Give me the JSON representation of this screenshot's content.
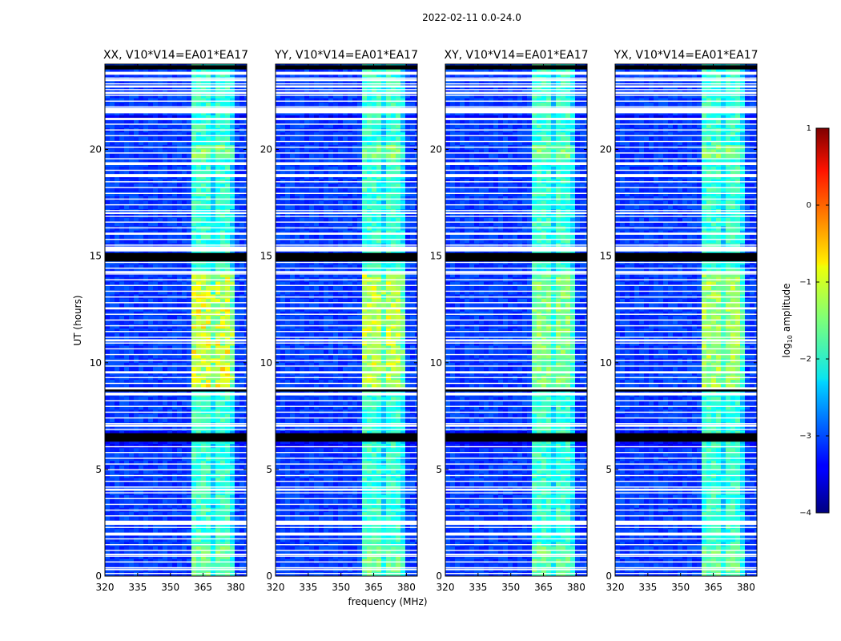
{
  "figure_title": "2022-02-11 0.0-24.0",
  "chart_data": {
    "type": "heatmap",
    "title": "2022-02-11 0.0-24.0",
    "xlabel": "frequency (MHz)",
    "ylabel": "UT (hours)",
    "xlim": [
      320,
      385
    ],
    "ylim": [
      0,
      24
    ],
    "xticks": [
      320,
      335,
      350,
      365,
      380
    ],
    "yticks": [
      0,
      5,
      10,
      15,
      20
    ],
    "panels": [
      {
        "title": "XX, V10*V14=EA01*EA17",
        "bright_band_mhz": [
          360.5,
          380
        ],
        "mid_boost": 0.15
      },
      {
        "title": "YY, V10*V14=EA01*EA17",
        "bright_band_mhz": [
          360.5,
          380
        ],
        "mid_boost": 0.1
      },
      {
        "title": "XY, V10*V14=EA01*EA17",
        "bright_band_mhz": [
          360.5,
          380
        ],
        "mid_boost": 0.0
      },
      {
        "title": "YX, V10*V14=EA01*EA17",
        "bright_band_mhz": [
          360.5,
          380
        ],
        "mid_boost": 0.05
      }
    ],
    "colorbar": {
      "label": "log10 amplitude",
      "label_main": "log",
      "label_sub": "10",
      "label_rest": " amplitude",
      "min": -4,
      "max": 1,
      "ticks": [
        "−4",
        "−3",
        "−2",
        "−1",
        "0",
        "1"
      ],
      "tick_values": [
        -4,
        -3,
        -2,
        -1,
        0,
        1
      ],
      "colormap": "jet"
    },
    "blank_rows_ut": [
      [
        23.5,
        23.6
      ],
      [
        23.2,
        23.3
      ],
      [
        22.9,
        23.0
      ],
      [
        22.6,
        22.7
      ],
      [
        21.7,
        21.95
      ],
      [
        21.4,
        21.45
      ],
      [
        19.3,
        19.4
      ],
      [
        18.7,
        18.85
      ],
      [
        17.0,
        17.05
      ],
      [
        16.0,
        16.1
      ],
      [
        15.25,
        15.45
      ],
      [
        14.2,
        14.3
      ],
      [
        12.5,
        12.6
      ],
      [
        11.0,
        11.1
      ],
      [
        9.5,
        9.6
      ],
      [
        8.8,
        8.85
      ],
      [
        8.5,
        8.6
      ],
      [
        7.0,
        7.1
      ],
      [
        4.0,
        4.1
      ],
      [
        2.4,
        2.6
      ],
      [
        1.9,
        2.0
      ],
      [
        1.0,
        1.05
      ],
      [
        0.3,
        0.35
      ]
    ],
    "black_rows_ut": [
      [
        23.75,
        23.95
      ],
      [
        14.75,
        15.15
      ],
      [
        8.65,
        8.75
      ],
      [
        6.3,
        6.7
      ]
    ]
  }
}
